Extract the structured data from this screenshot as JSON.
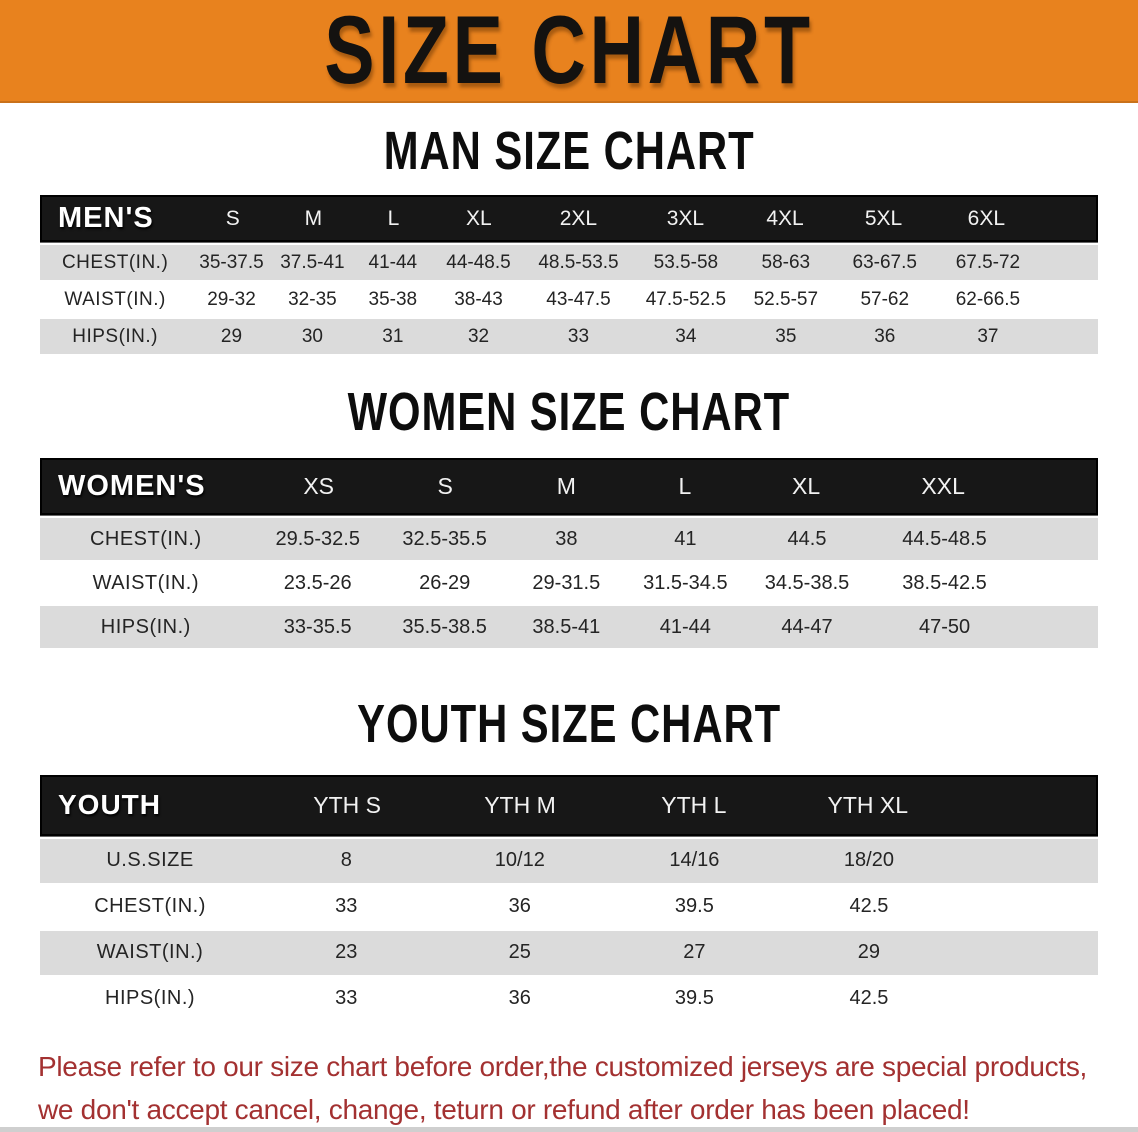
{
  "banner": {
    "title": "SIZE CHART",
    "bg_color": "#E8821E",
    "text_color": "#141210"
  },
  "sections": [
    {
      "heading": "MAN SIZE CHART",
      "table": {
        "label": "MEN'S",
        "columns": [
          "S",
          "M",
          "L",
          "XL",
          "2XL",
          "3XL",
          "4XL",
          "5XL",
          "6XL"
        ],
        "rows": [
          {
            "label": "CHEST(IN.)",
            "values": [
              "35-37.5",
              "37.5-41",
              "41-44",
              "44-48.5",
              "48.5-53.5",
              "53.5-58",
              "58-63",
              "63-67.5",
              "67.5-72"
            ]
          },
          {
            "label": "WAIST(IN.)",
            "values": [
              "29-32",
              "32-35",
              "35-38",
              "38-43",
              "43-47.5",
              "47.5-52.5",
              "52.5-57",
              "57-62",
              "62-66.5"
            ]
          },
          {
            "label": "HIPS(IN.)",
            "values": [
              "29",
              "30",
              "31",
              "32",
              "33",
              "34",
              "35",
              "36",
              "37"
            ]
          }
        ]
      }
    },
    {
      "heading": "WOMEN SIZE CHART",
      "table": {
        "label": "WOMEN'S",
        "columns": [
          "XS",
          "S",
          "M",
          "L",
          "XL",
          "XXL"
        ],
        "rows": [
          {
            "label": "CHEST(IN.)",
            "values": [
              "29.5-32.5",
              "32.5-35.5",
              "38",
              "41",
              "44.5",
              "44.5-48.5"
            ]
          },
          {
            "label": "WAIST(IN.)",
            "values": [
              "23.5-26",
              "26-29",
              "29-31.5",
              "31.5-34.5",
              "34.5-38.5",
              "38.5-42.5"
            ]
          },
          {
            "label": "HIPS(IN.)",
            "values": [
              "33-35.5",
              "35.5-38.5",
              "38.5-41",
              "41-44",
              "44-47",
              "47-50"
            ]
          }
        ]
      }
    },
    {
      "heading": "YOUTH SIZE CHART",
      "table": {
        "label": "YOUTH",
        "columns": [
          "YTH S",
          "YTH M",
          "YTH L",
          "YTH XL"
        ],
        "rows": [
          {
            "label": "U.S.SIZE",
            "values": [
              "8",
              "10/12",
              "14/16",
              "18/20"
            ]
          },
          {
            "label": "CHEST(IN.)",
            "values": [
              "33",
              "36",
              "39.5",
              "42.5"
            ]
          },
          {
            "label": "WAIST(IN.)",
            "values": [
              "23",
              "25",
              "27",
              "29"
            ]
          },
          {
            "label": "HIPS(IN.)",
            "values": [
              "33",
              "36",
              "39.5",
              "42.5"
            ]
          }
        ]
      }
    }
  ],
  "table_style": {
    "header_bg": "#171717",
    "header_text": "#ffffff",
    "shaded_row_bg": "#dbdbdb",
    "plain_row_bg": "#ffffff"
  },
  "disclaimer": {
    "line1": "Please refer to our size chart before order,the customized jerseys are special products,",
    "line2": "we don't accept cancel, change, teturn or refund after order has been placed!",
    "color": "#A33131"
  }
}
